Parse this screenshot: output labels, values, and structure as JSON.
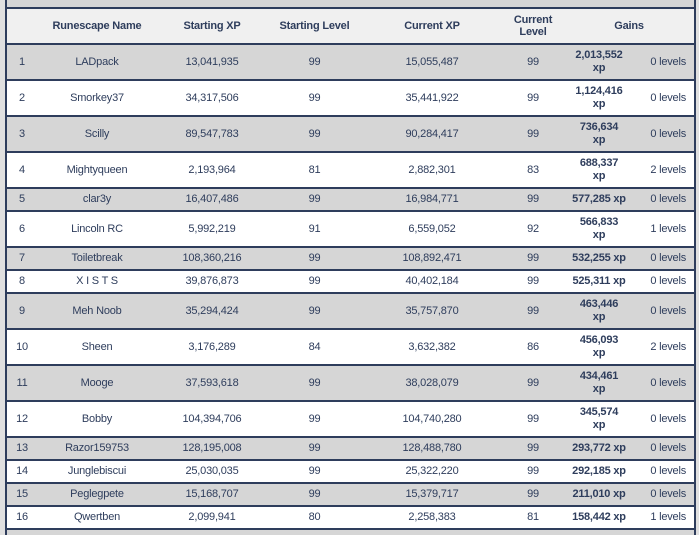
{
  "table": {
    "columns": {
      "rank_header": "",
      "name_header": "Runescape Name",
      "starting_xp_header": "Starting XP",
      "starting_level_header": "Starting Level",
      "current_xp_header": "Current XP",
      "current_level_header": "Current Level",
      "gains_header": "Gains"
    },
    "rows": [
      {
        "rank": "1",
        "name": "LADpack",
        "starting_xp": "13,041,935",
        "starting_level": "99",
        "current_xp": "15,055,487",
        "current_level": "99",
        "gain_xp": "2,013,552\nxp",
        "gain_levels": "0 levels"
      },
      {
        "rank": "2",
        "name": "Smorkey37",
        "starting_xp": "34,317,506",
        "starting_level": "99",
        "current_xp": "35,441,922",
        "current_level": "99",
        "gain_xp": "1,124,416\nxp",
        "gain_levels": "0 levels"
      },
      {
        "rank": "3",
        "name": "Scilly",
        "starting_xp": "89,547,783",
        "starting_level": "99",
        "current_xp": "90,284,417",
        "current_level": "99",
        "gain_xp": "736,634\nxp",
        "gain_levels": "0 levels"
      },
      {
        "rank": "4",
        "name": "Mightyqueen",
        "starting_xp": "2,193,964",
        "starting_level": "81",
        "current_xp": "2,882,301",
        "current_level": "83",
        "gain_xp": "688,337\nxp",
        "gain_levels": "2 levels"
      },
      {
        "rank": "5",
        "name": "clar3y",
        "starting_xp": "16,407,486",
        "starting_level": "99",
        "current_xp": "16,984,771",
        "current_level": "99",
        "gain_xp": "577,285 xp",
        "gain_levels": "0 levels"
      },
      {
        "rank": "6",
        "name": "Lincoln RC",
        "starting_xp": "5,992,219",
        "starting_level": "91",
        "current_xp": "6,559,052",
        "current_level": "92",
        "gain_xp": "566,833\nxp",
        "gain_levels": "1 levels"
      },
      {
        "rank": "7",
        "name": "Toiletbreak",
        "starting_xp": "108,360,216",
        "starting_level": "99",
        "current_xp": "108,892,471",
        "current_level": "99",
        "gain_xp": "532,255 xp",
        "gain_levels": "0 levels"
      },
      {
        "rank": "8",
        "name": "X I S T S",
        "starting_xp": "39,876,873",
        "starting_level": "99",
        "current_xp": "40,402,184",
        "current_level": "99",
        "gain_xp": "525,311 xp",
        "gain_levels": "0 levels"
      },
      {
        "rank": "9",
        "name": "Meh Noob",
        "starting_xp": "35,294,424",
        "starting_level": "99",
        "current_xp": "35,757,870",
        "current_level": "99",
        "gain_xp": "463,446\nxp",
        "gain_levels": "0 levels"
      },
      {
        "rank": "10",
        "name": "Sheen",
        "starting_xp": "3,176,289",
        "starting_level": "84",
        "current_xp": "3,632,382",
        "current_level": "86",
        "gain_xp": "456,093\nxp",
        "gain_levels": "2 levels"
      },
      {
        "rank": "11",
        "name": "Mooge",
        "starting_xp": "37,593,618",
        "starting_level": "99",
        "current_xp": "38,028,079",
        "current_level": "99",
        "gain_xp": "434,461\nxp",
        "gain_levels": "0 levels"
      },
      {
        "rank": "12",
        "name": "Bobby",
        "starting_xp": "104,394,706",
        "starting_level": "99",
        "current_xp": "104,740,280",
        "current_level": "99",
        "gain_xp": "345,574\nxp",
        "gain_levels": "0 levels"
      },
      {
        "rank": "13",
        "name": "Razor159753",
        "starting_xp": "128,195,008",
        "starting_level": "99",
        "current_xp": "128,488,780",
        "current_level": "99",
        "gain_xp": "293,772 xp",
        "gain_levels": "0 levels"
      },
      {
        "rank": "14",
        "name": "Junglebiscui",
        "starting_xp": "25,030,035",
        "starting_level": "99",
        "current_xp": "25,322,220",
        "current_level": "99",
        "gain_xp": "292,185 xp",
        "gain_levels": "0 levels"
      },
      {
        "rank": "15",
        "name": "Peglegpete",
        "starting_xp": "15,168,707",
        "starting_level": "99",
        "current_xp": "15,379,717",
        "current_level": "99",
        "gain_xp": "211,010 xp",
        "gain_levels": "0 levels"
      },
      {
        "rank": "16",
        "name": "Qwertben",
        "starting_xp": "2,099,941",
        "starting_level": "80",
        "current_xp": "2,258,383",
        "current_level": "81",
        "gain_xp": "158,442 xp",
        "gain_levels": "1 levels"
      }
    ]
  },
  "colors": {
    "accent_navy": "#2e3d5c",
    "row_stripe_gray": "#d6d6d6",
    "row_white": "#ffffff",
    "header_bg": "#f0f0f0",
    "page_bg": "#e0e0e0"
  }
}
